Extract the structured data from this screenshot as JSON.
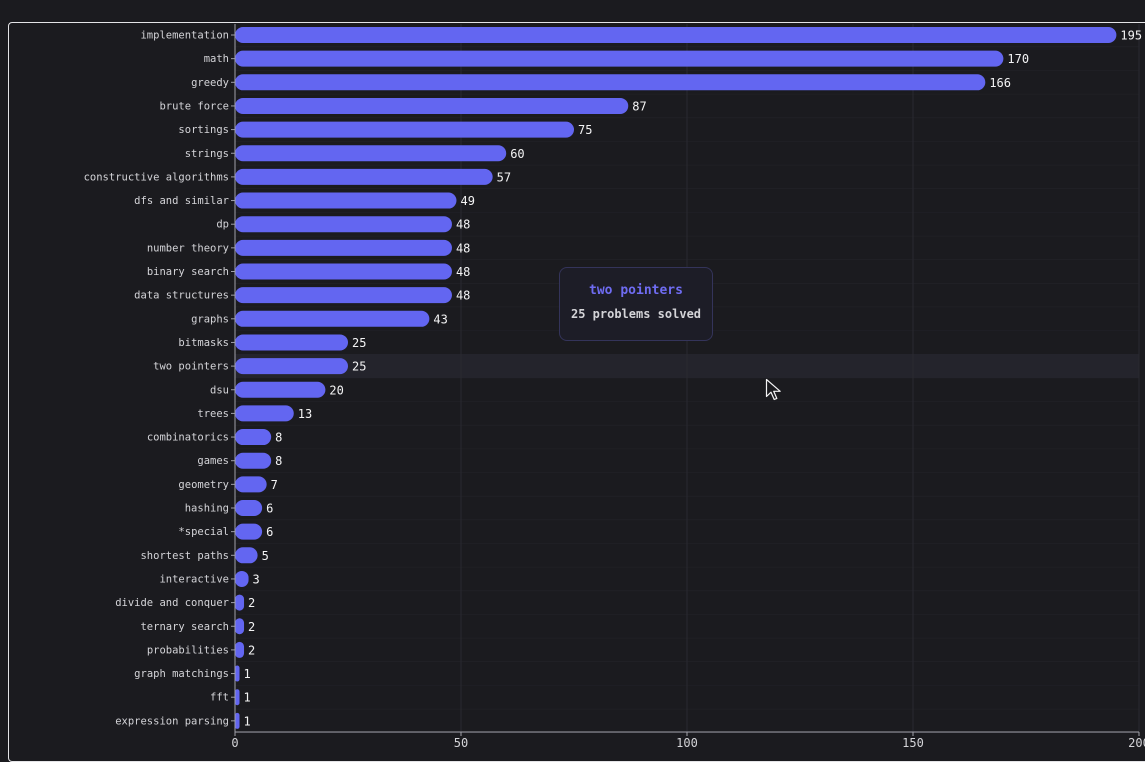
{
  "chart_data": {
    "type": "bar",
    "orientation": "horizontal",
    "categories": [
      "implementation",
      "math",
      "greedy",
      "brute force",
      "sortings",
      "strings",
      "constructive algorithms",
      "dfs and similar",
      "dp",
      "number theory",
      "binary search",
      "data structures",
      "graphs",
      "bitmasks",
      "two pointers",
      "dsu",
      "trees",
      "combinatorics",
      "games",
      "geometry",
      "hashing",
      "*special",
      "shortest paths",
      "interactive",
      "divide and conquer",
      "ternary search",
      "probabilities",
      "graph matchings",
      "fft",
      "expression parsing"
    ],
    "values": [
      195,
      170,
      166,
      87,
      75,
      60,
      57,
      49,
      48,
      48,
      48,
      48,
      43,
      25,
      25,
      20,
      13,
      8,
      8,
      7,
      6,
      6,
      5,
      3,
      2,
      2,
      2,
      1,
      1,
      1
    ],
    "xlim": [
      0,
      200
    ],
    "xticks": [
      0,
      50,
      100,
      150,
      200
    ],
    "grid": true,
    "highlighted_category": "two pointers",
    "bar_color": "#6366f1"
  },
  "tooltip": {
    "title": "two pointers",
    "body": "25 problems solved"
  },
  "colors": {
    "background": "#1b1b1f",
    "bar": "#6366f1",
    "highlight_row": "#24242c",
    "grid": "#2a2a30",
    "axis": "#a1a1aa",
    "tooltip_title": "#6f6cf2"
  },
  "icons": {
    "cursor": "mouse-pointer-icon"
  }
}
